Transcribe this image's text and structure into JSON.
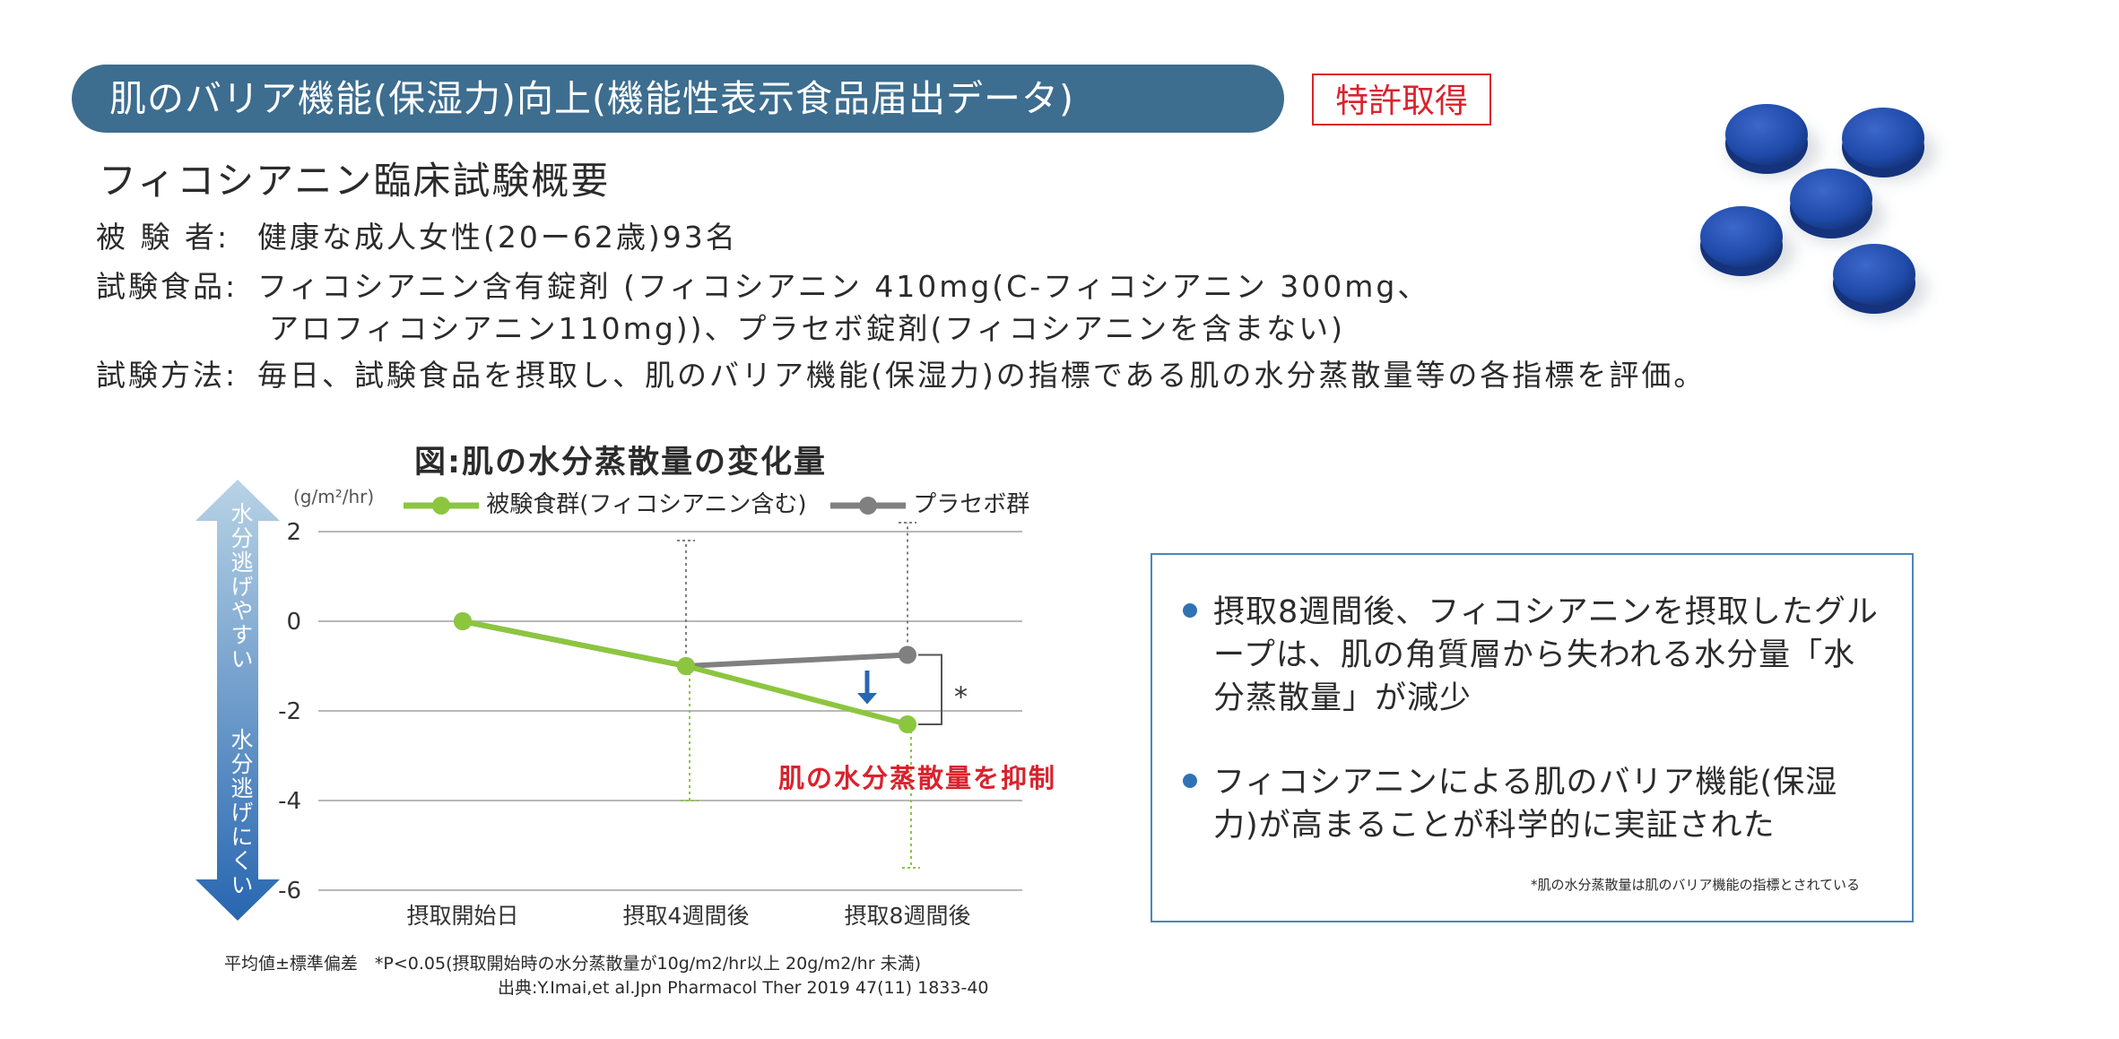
{
  "header": {
    "banner_title": "肌のバリア機能(保湿力)向上(機能性表示食品届出データ)",
    "patent_badge": "特許取得"
  },
  "overview": {
    "title": "フィコシアニン臨床試験概要",
    "rows": [
      {
        "label": "被 験 者:",
        "value": "健康な成人女性(20ー62歳)93名"
      },
      {
        "label": "試験食品:",
        "value": "フィコシアニン含有錠剤 (フィコシアニン 410mg(C-フィコシアニン 300mg、"
      },
      {
        "label": "",
        "value": "アロフィコシアニン110mg))、プラセボ錠剤(フィコシアニンを含まない)"
      },
      {
        "label": "試験方法:",
        "value": "毎日、試験食品を摂取し、肌のバリア機能(保湿力)の指標である肌の水分蒸散量等の各指標を評価。"
      }
    ]
  },
  "colors": {
    "banner": "#3d6d8f",
    "accent_red": "#d9232d",
    "test_series": "#8cc63f",
    "placebo_series": "#808080",
    "tablet_blue": "#1f4aa8"
  },
  "chart_data": {
    "type": "line",
    "title": "図:肌の水分蒸散量の変化量",
    "ylabel": "(g/m²/hr)",
    "xlabel": "",
    "categories": [
      "摂取開始日",
      "摂取4週間後",
      "摂取8週間後"
    ],
    "ylim": [
      -6,
      2
    ],
    "yticks": [
      2,
      0,
      -2,
      -4,
      -6
    ],
    "series": [
      {
        "name": "被験食群(フィコシアニン含む)",
        "values": [
          0,
          -1.0,
          -2.3
        ],
        "error": [
          0,
          3.0,
          3.2
        ],
        "color": "#8cc63f"
      },
      {
        "name": "プラセボ群",
        "values": [
          0,
          -1.0,
          -0.75
        ],
        "error": [
          0,
          2.8,
          2.95
        ],
        "color": "#808080"
      }
    ],
    "grid": true,
    "legend_position": "top",
    "direction_labels": {
      "up": "水分逃げやすい",
      "down": "水分逃げにくい"
    },
    "significance_mark": "*",
    "annotation": "肌の水分蒸散量を抑制",
    "footnote": "平均値±標準偏差　*P<0.05(摂取開始時の水分蒸散量が10g/m2/hr以上 20g/m2/hr 未満)",
    "source": "出典:Y.Imai,et al.Jpn Pharmacol Ther 2019 47(11) 1833-40"
  },
  "results": {
    "bullets": [
      "摂取8週間後、フィコシアニンを摂取したグループは、肌の角質層から失われる水分量「水分蒸散量」が減少",
      "フィコシアニンによる肌のバリア機能(保湿力)が高まることが科学的に実証された"
    ],
    "note": "*肌の水分蒸散量は肌のバリア機能の指標とされている"
  }
}
